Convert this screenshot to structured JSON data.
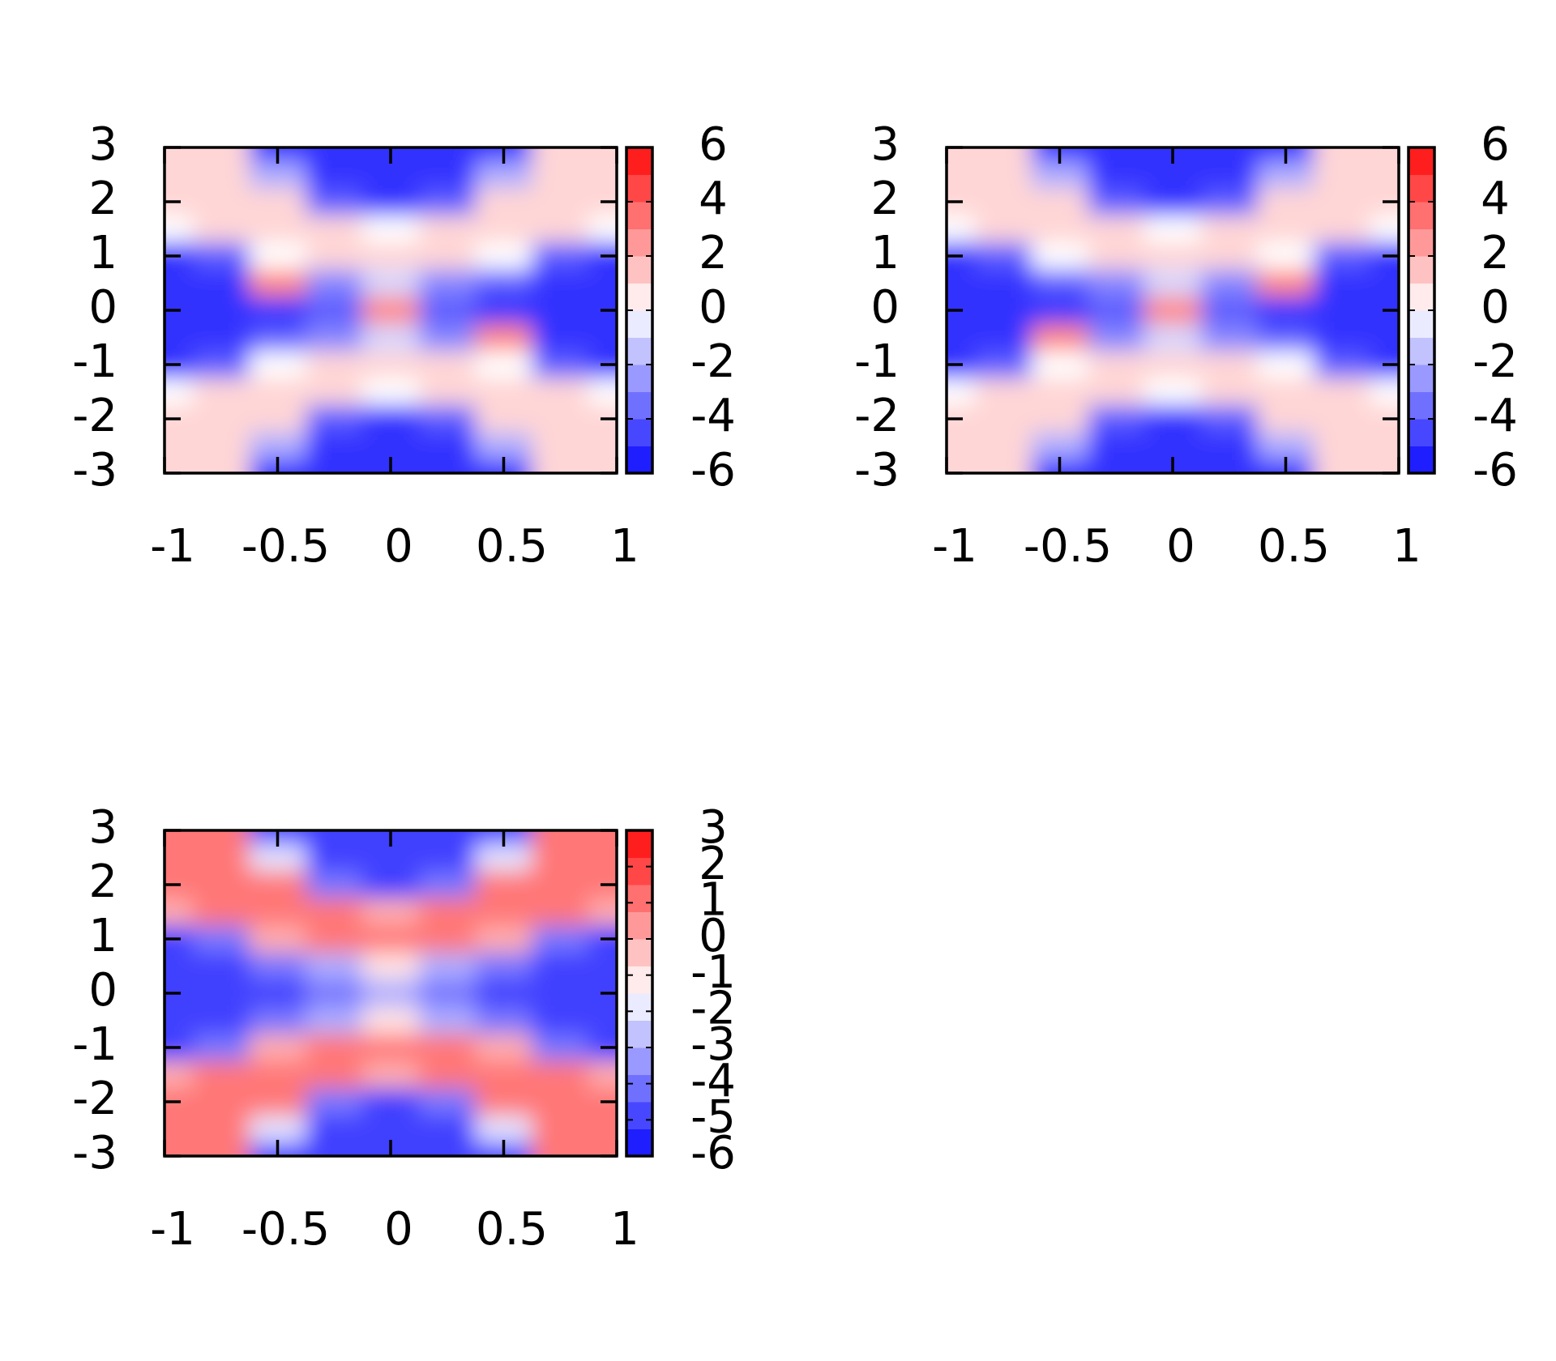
{
  "chart_data": [
    {
      "type": "heatmap",
      "x": [
        -1,
        -0.75,
        -0.5,
        -0.25,
        0,
        0.25,
        0.5,
        0.75,
        1
      ],
      "y": [
        3,
        2.5,
        2,
        1.5,
        1,
        0.5,
        0,
        -0.5,
        -1,
        -1.5,
        -2,
        -2.5,
        -3
      ],
      "z": [
        [
          1,
          1,
          -5,
          -5,
          -5,
          -5,
          -5,
          1,
          1
        ],
        [
          1,
          1,
          -2,
          -5,
          -5,
          -5,
          -2,
          1,
          1
        ],
        [
          1,
          1,
          1,
          -4,
          -5,
          -4,
          1,
          1,
          1
        ],
        [
          0,
          1,
          1,
          1,
          0,
          1,
          1,
          1,
          0
        ],
        [
          -5,
          -4,
          0,
          1,
          1,
          1,
          0,
          -4,
          -5
        ],
        [
          -5,
          -5,
          3,
          -3,
          -1,
          -3,
          -4,
          -5,
          -5
        ],
        [
          -5,
          -5,
          -5,
          -4,
          3,
          -4,
          -5,
          -5,
          -5
        ],
        [
          -5,
          -5,
          -4,
          -3,
          -1,
          -3,
          3,
          -5,
          -5
        ],
        [
          -5,
          -4,
          0,
          1,
          1,
          1,
          0,
          -4,
          -5
        ],
        [
          0,
          1,
          1,
          1,
          0,
          1,
          1,
          1,
          0
        ],
        [
          1,
          1,
          1,
          -4,
          -5,
          -4,
          1,
          1,
          1
        ],
        [
          1,
          1,
          -2,
          -5,
          -5,
          -5,
          -2,
          1,
          1
        ],
        [
          1,
          1,
          -5,
          -5,
          -5,
          -5,
          -5,
          1,
          1
        ]
      ],
      "xlim": [
        -1,
        1
      ],
      "ylim": [
        -3,
        3
      ],
      "xticks": [
        -1,
        -0.5,
        0,
        0.5,
        1
      ],
      "yticks": [
        3,
        2,
        1,
        0,
        -1,
        -2,
        -3
      ],
      "clim": [
        -6,
        6
      ],
      "cticks": [
        6,
        4,
        2,
        0,
        -2,
        -4,
        -6
      ],
      "colors": [
        "#0a0aff",
        "#ffffff",
        "#ff0a0a"
      ]
    },
    {
      "type": "heatmap",
      "x": [
        -1,
        -0.75,
        -0.5,
        -0.25,
        0,
        0.25,
        0.5,
        0.75,
        1
      ],
      "y": [
        3,
        2.5,
        2,
        1.5,
        1,
        0.5,
        0,
        -0.5,
        -1,
        -1.5,
        -2,
        -2.5,
        -3
      ],
      "z": [
        [
          1,
          1,
          -5,
          -5,
          -5,
          -5,
          -5,
          1,
          1
        ],
        [
          1,
          1,
          -2,
          -5,
          -5,
          -5,
          -2,
          1,
          1
        ],
        [
          1,
          1,
          1,
          -4,
          -5,
          -4,
          1,
          1,
          1
        ],
        [
          0,
          1,
          1,
          1,
          0,
          1,
          1,
          1,
          0
        ],
        [
          -5,
          -4,
          0,
          1,
          1,
          1,
          0,
          -4,
          -5
        ],
        [
          -5,
          -5,
          -4,
          -3,
          -1,
          -3,
          3,
          -5,
          -5
        ],
        [
          -5,
          -5,
          -5,
          -4,
          3,
          -4,
          -5,
          -5,
          -5
        ],
        [
          -5,
          -5,
          3,
          -3,
          -1,
          -3,
          -4,
          -5,
          -5
        ],
        [
          -5,
          -4,
          0,
          1,
          1,
          1,
          0,
          -4,
          -5
        ],
        [
          0,
          1,
          1,
          1,
          0,
          1,
          1,
          1,
          0
        ],
        [
          1,
          1,
          1,
          -4,
          -5,
          -4,
          1,
          1,
          1
        ],
        [
          1,
          1,
          -2,
          -5,
          -5,
          -5,
          -2,
          1,
          1
        ],
        [
          1,
          1,
          -5,
          -5,
          -5,
          -5,
          -5,
          1,
          1
        ]
      ],
      "xlim": [
        -1,
        1
      ],
      "ylim": [
        -3,
        3
      ],
      "xticks": [
        -1,
        -0.5,
        0,
        0.5,
        1
      ],
      "yticks": [
        3,
        2,
        1,
        0,
        -1,
        -2,
        -3
      ],
      "clim": [
        -6,
        6
      ],
      "cticks": [
        6,
        4,
        2,
        0,
        -2,
        -4,
        -6
      ],
      "colors": [
        "#0a0aff",
        "#ffffff",
        "#ff0a0a"
      ]
    },
    {
      "type": "heatmap",
      "x": [
        -1,
        -0.75,
        -0.5,
        -0.25,
        0,
        0.25,
        0.5,
        0.75,
        1
      ],
      "y": [
        3,
        2.5,
        2,
        1.5,
        1,
        0.5,
        0,
        -0.5,
        -1,
        -1.5,
        -2,
        -2.5,
        -3
      ],
      "z": [
        [
          1,
          1,
          -5,
          -5,
          -5,
          -5,
          -5,
          1,
          1
        ],
        [
          1,
          1,
          -2,
          -5,
          -5,
          -5,
          -2,
          1,
          1
        ],
        [
          1,
          1,
          1,
          -4,
          -5,
          -4,
          1,
          1,
          1
        ],
        [
          0,
          1,
          1,
          1,
          0,
          1,
          1,
          1,
          0
        ],
        [
          -5,
          -4,
          0,
          1,
          1,
          1,
          0,
          -4,
          -5
        ],
        [
          -5,
          -5,
          -4,
          -3,
          -1,
          -3,
          -4,
          -5,
          -5
        ],
        [
          -5,
          -5,
          -5,
          -4,
          -3,
          -4,
          -5,
          -5,
          -5
        ],
        [
          -5,
          -5,
          -4,
          -3,
          -1,
          -3,
          -4,
          -5,
          -5
        ],
        [
          -5,
          -4,
          0,
          1,
          1,
          1,
          0,
          -4,
          -5
        ],
        [
          0,
          1,
          1,
          1,
          0,
          1,
          1,
          1,
          0
        ],
        [
          1,
          1,
          1,
          -4,
          -5,
          -4,
          1,
          1,
          1
        ],
        [
          1,
          1,
          -2,
          -5,
          -5,
          -5,
          -2,
          1,
          1
        ],
        [
          1,
          1,
          -5,
          -5,
          -5,
          -5,
          -5,
          1,
          1
        ]
      ],
      "xlim": [
        -1,
        1
      ],
      "ylim": [
        -3,
        3
      ],
      "xticks": [
        -1,
        -0.5,
        0,
        0.5,
        1
      ],
      "yticks": [
        3,
        2,
        1,
        0,
        -1,
        -2,
        -3
      ],
      "clim": [
        -6,
        3
      ],
      "cticks": [
        3,
        2,
        1,
        0,
        -1,
        -2,
        -3,
        -4,
        -5,
        -6
      ],
      "colors": [
        "#0a0aff",
        "#ffffff",
        "#ff0a0a"
      ]
    }
  ]
}
